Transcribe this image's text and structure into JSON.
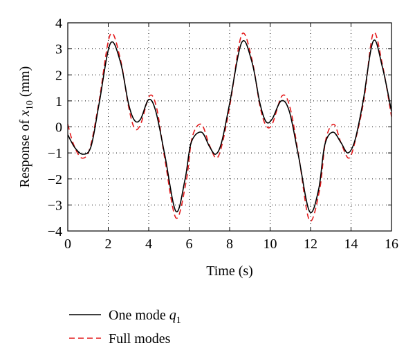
{
  "chart_data": {
    "type": "line",
    "title": "",
    "xlabel": "Time (s)",
    "ylabel": {
      "prefix": "Response of ",
      "var": "x",
      "sub": "10",
      "suffix": " (mm)"
    },
    "xlim": [
      0,
      16
    ],
    "ylim": [
      -4,
      4
    ],
    "xticks": [
      0,
      2,
      4,
      6,
      8,
      10,
      12,
      14,
      16
    ],
    "yticks": [
      -4,
      -3,
      -2,
      -1,
      0,
      1,
      2,
      3,
      4
    ],
    "xtick_labels": [
      "0",
      "2",
      "4",
      "6",
      "8",
      "10",
      "12",
      "14",
      "16"
    ],
    "ytick_labels": [
      "−4",
      "−3",
      "−2",
      "−1",
      "0",
      "1",
      "2",
      "3",
      "4"
    ],
    "grid": true,
    "legend_position": "below",
    "series": [
      {
        "name": "One mode q1",
        "legend": {
          "text": "One mode ",
          "var": "q",
          "sub": "1"
        },
        "color": "#000000",
        "dash": "solid",
        "x": [
          0,
          0.35,
          0.75,
          1.15,
          1.55,
          2.1,
          2.6,
          3.0,
          3.3,
          3.6,
          4.0,
          4.35,
          4.8,
          5.35,
          5.8,
          6.1,
          6.6,
          7.0,
          7.3,
          7.6,
          8.0,
          8.6,
          9.1,
          9.5,
          9.8,
          10.1,
          10.55,
          10.95,
          11.4,
          11.95,
          12.4,
          12.7,
          13.1,
          13.5,
          13.85,
          14.2,
          14.6,
          15.1,
          15.55,
          16.0
        ],
        "y": [
          -0.3,
          -0.8,
          -1.05,
          -0.75,
          0.9,
          3.2,
          2.5,
          0.9,
          0.25,
          0.3,
          1.05,
          0.6,
          -1.1,
          -3.25,
          -2.0,
          -0.6,
          -0.2,
          -0.75,
          -1.05,
          -0.6,
          0.9,
          3.25,
          2.5,
          0.9,
          0.2,
          0.3,
          1.0,
          0.6,
          -1.1,
          -3.25,
          -2.4,
          -0.7,
          -0.2,
          -0.6,
          -1.0,
          -0.5,
          1.0,
          3.3,
          2.3,
          0.6
        ]
      },
      {
        "name": "Full modes",
        "legend": {
          "text": "Full modes",
          "var": "",
          "sub": ""
        },
        "color": "#e41a1c",
        "dash": "dashed",
        "x": [
          0,
          0.3,
          0.7,
          1.1,
          1.55,
          2.1,
          2.6,
          3.0,
          3.3,
          3.6,
          4.05,
          4.4,
          4.8,
          5.35,
          5.85,
          6.15,
          6.6,
          7.0,
          7.35,
          7.65,
          8.05,
          8.6,
          9.1,
          9.5,
          9.8,
          10.1,
          10.6,
          11.0,
          11.45,
          11.95,
          12.45,
          12.75,
          13.15,
          13.5,
          13.9,
          14.25,
          14.65,
          15.1,
          15.55,
          16.0
        ],
        "y": [
          0.1,
          -0.7,
          -1.2,
          -0.8,
          1.0,
          3.55,
          2.6,
          0.8,
          -0.05,
          0.1,
          1.2,
          0.7,
          -1.25,
          -3.5,
          -2.1,
          -0.4,
          0.1,
          -0.7,
          -1.2,
          -0.6,
          1.0,
          3.55,
          2.6,
          0.8,
          0.05,
          0.1,
          1.2,
          0.7,
          -1.3,
          -3.6,
          -2.4,
          -0.5,
          0.1,
          -0.6,
          -1.2,
          -0.4,
          1.1,
          3.6,
          2.4,
          0.4
        ]
      }
    ]
  }
}
